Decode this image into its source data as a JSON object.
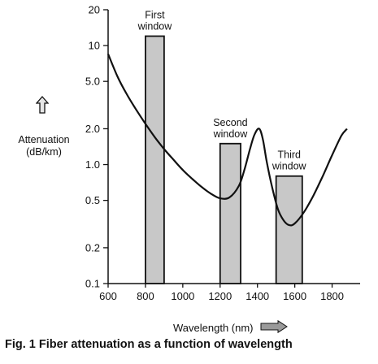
{
  "chart_data": {
    "type": "bar",
    "title": "",
    "xlabel": "Wavelength (nm)",
    "ylabel_lines": [
      "Attenuation",
      "(dB/km)"
    ],
    "caption": "Fig. 1 Fiber attenuation as a function of wavelength",
    "y_scale": "log",
    "xlim": [
      600,
      1950
    ],
    "ylim": [
      0.1,
      20
    ],
    "x_ticks": [
      600,
      800,
      1000,
      1200,
      1400,
      1600,
      1800
    ],
    "y_ticks": [
      {
        "value": 20,
        "label": "20"
      },
      {
        "value": 10,
        "label": "10"
      },
      {
        "value": 5,
        "label": "5.0"
      },
      {
        "value": 2,
        "label": "2.0"
      },
      {
        "value": 1,
        "label": "1.0"
      },
      {
        "value": 0.5,
        "label": "0.5"
      },
      {
        "value": 0.2,
        "label": "0.2"
      },
      {
        "value": 0.1,
        "label": "0.1"
      }
    ],
    "grid": false,
    "bars": [
      {
        "x0": 800,
        "x1": 900,
        "value": 12,
        "label_lines": [
          "First",
          "window"
        ]
      },
      {
        "x0": 1200,
        "x1": 1310,
        "value": 1.5,
        "label_lines": [
          "Second",
          "window"
        ]
      },
      {
        "x0": 1500,
        "x1": 1640,
        "value": 0.8,
        "label_lines": [
          "Third",
          "window"
        ]
      }
    ],
    "attenuation_curve": {
      "x": [
        600,
        650,
        700,
        750,
        800,
        850,
        900,
        950,
        1000,
        1050,
        1100,
        1150,
        1200,
        1250,
        1300,
        1330,
        1360,
        1385,
        1410,
        1430,
        1450,
        1480,
        1510,
        1540,
        1570,
        1600,
        1650,
        1700,
        1750,
        1800,
        1850,
        1880
      ],
      "y": [
        8.5,
        5.5,
        3.9,
        2.9,
        2.2,
        1.7,
        1.35,
        1.1,
        0.9,
        0.76,
        0.65,
        0.57,
        0.52,
        0.53,
        0.66,
        0.9,
        1.35,
        1.8,
        2.0,
        1.6,
        1.05,
        0.63,
        0.42,
        0.34,
        0.31,
        0.32,
        0.4,
        0.55,
        0.8,
        1.2,
        1.75,
        2.0
      ]
    },
    "colors": {
      "bar_fill": "#c8c8c8",
      "stroke": "#111111"
    }
  }
}
